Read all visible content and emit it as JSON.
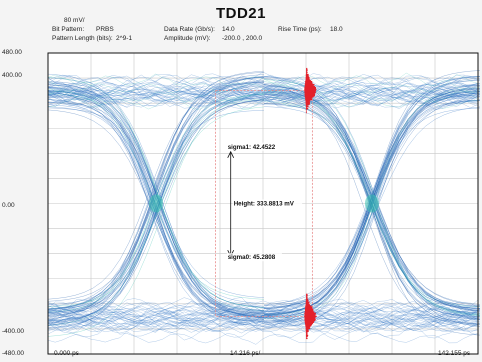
{
  "header": {
    "scale": "80 mV/",
    "title": "TDD21",
    "bit_pattern_label": "Bit Pattern:",
    "bit_pattern_value": "PRBS",
    "pattern_length_label": "Pattern Length (bits):",
    "pattern_length_value": "2^9-1",
    "data_rate_label": "Data Rate (Gb/s):",
    "data_rate_value": "14.0",
    "amplitude_label": "Amplitude (mV):",
    "amplitude_value": "-200.0 , 200.0",
    "rise_time_label": "Rise Time (ps):",
    "rise_time_value": "18.0"
  },
  "chart_data": {
    "type": "eye-diagram",
    "title": "TDD21",
    "ylim": [
      -480,
      480
    ],
    "xlim": [
      0,
      142.155
    ],
    "y_tick_labels": [
      "480.00",
      "400.00",
      "0.00",
      "-400.00",
      "-480.00"
    ],
    "x_tick_labels": [
      "0.000 ps",
      "14.216 ps/",
      "142.155 ps"
    ],
    "logic_levels_mV": [
      400,
      -400
    ],
    "unit_interval_ps": 71.4,
    "crossing_points_ps": [
      35.7,
      107.1
    ],
    "eye_center_ps": 71.4,
    "sigma_top_mV": 165,
    "sigma_bottom_mV": -168,
    "annotations": {
      "sigma_top": "sigma1: 42.4522",
      "height": "Height: 333.8813 mV",
      "sigma_bottom": "sigma0: 45.2808"
    },
    "colors": {
      "trace_primary": "#2a6fc2",
      "trace_secondary": "#1e5ca8",
      "trace_highlight": "#38c0b0",
      "histogram": "#e3202b",
      "mask_box": "#e88a8a",
      "grid": "#c8c8c8",
      "frame": "#111111"
    }
  }
}
